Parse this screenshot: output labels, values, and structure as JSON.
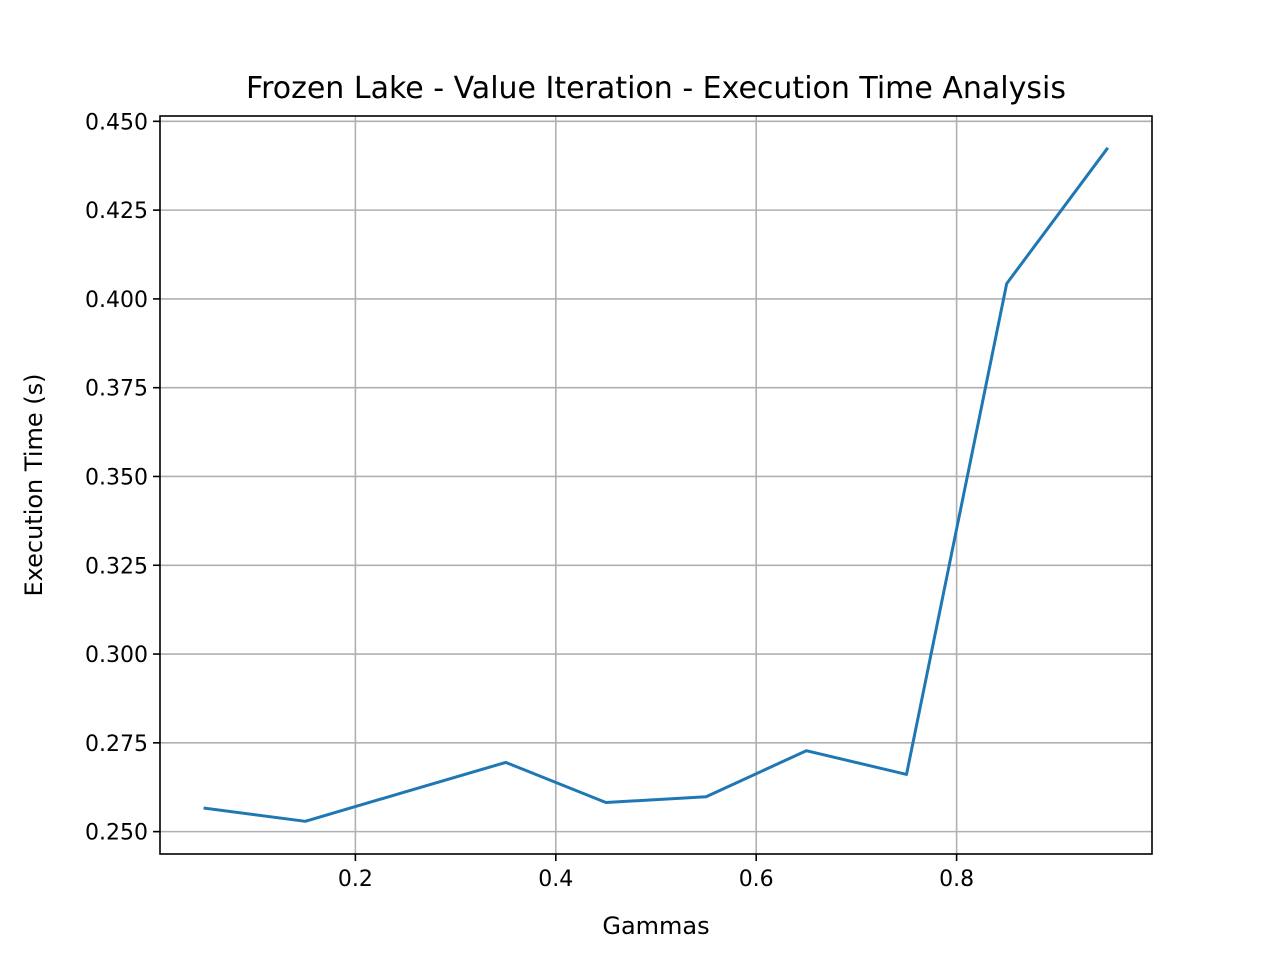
{
  "chart_data": {
    "type": "line",
    "title": "Frozen Lake - Value Iteration - Execution Time Analysis",
    "xlabel": "Gammas",
    "ylabel": "Execution Time (s)",
    "xlim": [
      0.005,
      0.995
    ],
    "ylim": [
      0.2437,
      0.4515
    ],
    "xticks": [
      {
        "value": 0.2,
        "label": "0.2"
      },
      {
        "value": 0.4,
        "label": "0.4"
      },
      {
        "value": 0.6,
        "label": "0.6"
      },
      {
        "value": 0.8,
        "label": "0.8"
      }
    ],
    "yticks": [
      {
        "value": 0.25,
        "label": "0.250"
      },
      {
        "value": 0.275,
        "label": "0.275"
      },
      {
        "value": 0.3,
        "label": "0.300"
      },
      {
        "value": 0.325,
        "label": "0.325"
      },
      {
        "value": 0.35,
        "label": "0.350"
      },
      {
        "value": 0.375,
        "label": "0.375"
      },
      {
        "value": 0.4,
        "label": "0.400"
      },
      {
        "value": 0.425,
        "label": "0.425"
      },
      {
        "value": 0.45,
        "label": "0.450"
      }
    ],
    "grid": true,
    "series": [
      {
        "color": "#1f77b4",
        "x": [
          0.05,
          0.15,
          0.25,
          0.35,
          0.45,
          0.55,
          0.65,
          0.75,
          0.85,
          0.95
        ],
        "y": [
          0.2566,
          0.2529,
          0.2612,
          0.2695,
          0.2582,
          0.2598,
          0.2728,
          0.2661,
          0.4043,
          0.4422
        ]
      }
    ]
  }
}
